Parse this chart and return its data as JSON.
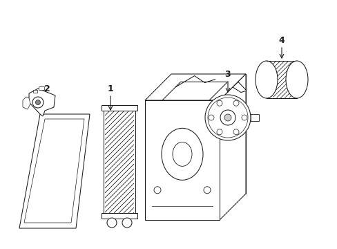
{
  "bg_color": "#ffffff",
  "line_color": "#1a1a1a",
  "figsize": [
    4.89,
    3.6
  ],
  "dpi": 100,
  "lw": 0.75
}
